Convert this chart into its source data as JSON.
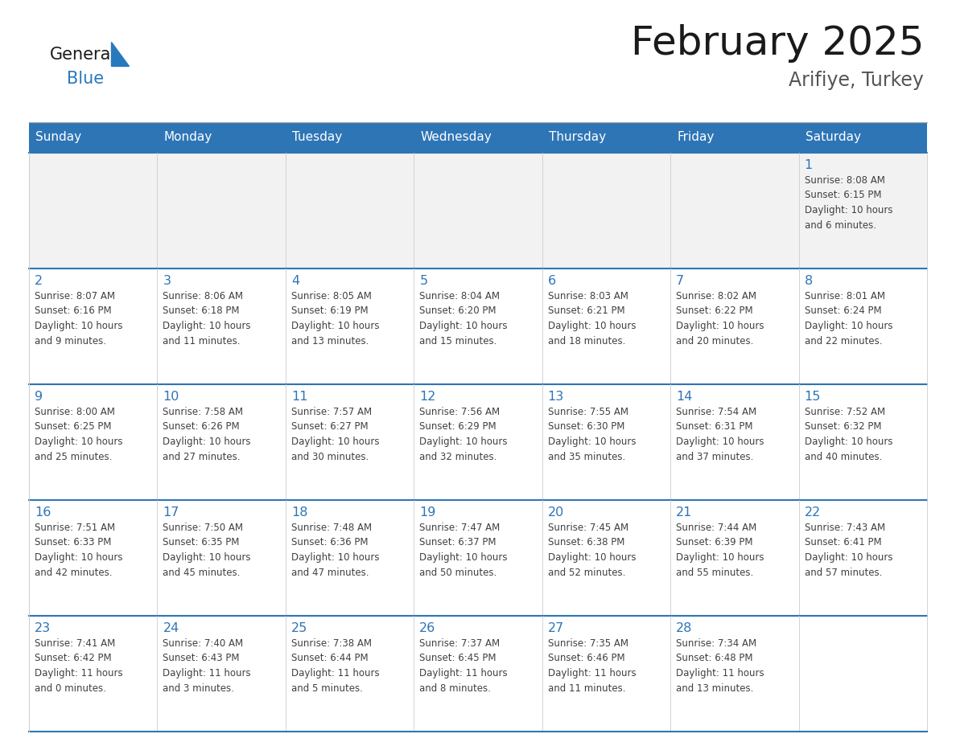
{
  "title": "February 2025",
  "subtitle": "Arifiye, Turkey",
  "header_bg_color": "#2E75B6",
  "header_text_color": "#FFFFFF",
  "days_of_week": [
    "Sunday",
    "Monday",
    "Tuesday",
    "Wednesday",
    "Thursday",
    "Friday",
    "Saturday"
  ],
  "cell_bg_color": "#FFFFFF",
  "alt_cell_bg_color": "#F2F2F2",
  "day_num_color": "#2E75B6",
  "info_text_color": "#404040",
  "title_color": "#1A1A1A",
  "subtitle_color": "#555555",
  "logo_general_color": "#1A1A1A",
  "logo_blue_color": "#2878BE",
  "border_color_top": "#2E75B6",
  "border_color_cell": "#CCCCCC",
  "weeks": [
    [
      {
        "day": null,
        "info": null
      },
      {
        "day": null,
        "info": null
      },
      {
        "day": null,
        "info": null
      },
      {
        "day": null,
        "info": null
      },
      {
        "day": null,
        "info": null
      },
      {
        "day": null,
        "info": null
      },
      {
        "day": 1,
        "info": "Sunrise: 8:08 AM\nSunset: 6:15 PM\nDaylight: 10 hours\nand 6 minutes."
      }
    ],
    [
      {
        "day": 2,
        "info": "Sunrise: 8:07 AM\nSunset: 6:16 PM\nDaylight: 10 hours\nand 9 minutes."
      },
      {
        "day": 3,
        "info": "Sunrise: 8:06 AM\nSunset: 6:18 PM\nDaylight: 10 hours\nand 11 minutes."
      },
      {
        "day": 4,
        "info": "Sunrise: 8:05 AM\nSunset: 6:19 PM\nDaylight: 10 hours\nand 13 minutes."
      },
      {
        "day": 5,
        "info": "Sunrise: 8:04 AM\nSunset: 6:20 PM\nDaylight: 10 hours\nand 15 minutes."
      },
      {
        "day": 6,
        "info": "Sunrise: 8:03 AM\nSunset: 6:21 PM\nDaylight: 10 hours\nand 18 minutes."
      },
      {
        "day": 7,
        "info": "Sunrise: 8:02 AM\nSunset: 6:22 PM\nDaylight: 10 hours\nand 20 minutes."
      },
      {
        "day": 8,
        "info": "Sunrise: 8:01 AM\nSunset: 6:24 PM\nDaylight: 10 hours\nand 22 minutes."
      }
    ],
    [
      {
        "day": 9,
        "info": "Sunrise: 8:00 AM\nSunset: 6:25 PM\nDaylight: 10 hours\nand 25 minutes."
      },
      {
        "day": 10,
        "info": "Sunrise: 7:58 AM\nSunset: 6:26 PM\nDaylight: 10 hours\nand 27 minutes."
      },
      {
        "day": 11,
        "info": "Sunrise: 7:57 AM\nSunset: 6:27 PM\nDaylight: 10 hours\nand 30 minutes."
      },
      {
        "day": 12,
        "info": "Sunrise: 7:56 AM\nSunset: 6:29 PM\nDaylight: 10 hours\nand 32 minutes."
      },
      {
        "day": 13,
        "info": "Sunrise: 7:55 AM\nSunset: 6:30 PM\nDaylight: 10 hours\nand 35 minutes."
      },
      {
        "day": 14,
        "info": "Sunrise: 7:54 AM\nSunset: 6:31 PM\nDaylight: 10 hours\nand 37 minutes."
      },
      {
        "day": 15,
        "info": "Sunrise: 7:52 AM\nSunset: 6:32 PM\nDaylight: 10 hours\nand 40 minutes."
      }
    ],
    [
      {
        "day": 16,
        "info": "Sunrise: 7:51 AM\nSunset: 6:33 PM\nDaylight: 10 hours\nand 42 minutes."
      },
      {
        "day": 17,
        "info": "Sunrise: 7:50 AM\nSunset: 6:35 PM\nDaylight: 10 hours\nand 45 minutes."
      },
      {
        "day": 18,
        "info": "Sunrise: 7:48 AM\nSunset: 6:36 PM\nDaylight: 10 hours\nand 47 minutes."
      },
      {
        "day": 19,
        "info": "Sunrise: 7:47 AM\nSunset: 6:37 PM\nDaylight: 10 hours\nand 50 minutes."
      },
      {
        "day": 20,
        "info": "Sunrise: 7:45 AM\nSunset: 6:38 PM\nDaylight: 10 hours\nand 52 minutes."
      },
      {
        "day": 21,
        "info": "Sunrise: 7:44 AM\nSunset: 6:39 PM\nDaylight: 10 hours\nand 55 minutes."
      },
      {
        "day": 22,
        "info": "Sunrise: 7:43 AM\nSunset: 6:41 PM\nDaylight: 10 hours\nand 57 minutes."
      }
    ],
    [
      {
        "day": 23,
        "info": "Sunrise: 7:41 AM\nSunset: 6:42 PM\nDaylight: 11 hours\nand 0 minutes."
      },
      {
        "day": 24,
        "info": "Sunrise: 7:40 AM\nSunset: 6:43 PM\nDaylight: 11 hours\nand 3 minutes."
      },
      {
        "day": 25,
        "info": "Sunrise: 7:38 AM\nSunset: 6:44 PM\nDaylight: 11 hours\nand 5 minutes."
      },
      {
        "day": 26,
        "info": "Sunrise: 7:37 AM\nSunset: 6:45 PM\nDaylight: 11 hours\nand 8 minutes."
      },
      {
        "day": 27,
        "info": "Sunrise: 7:35 AM\nSunset: 6:46 PM\nDaylight: 11 hours\nand 11 minutes."
      },
      {
        "day": 28,
        "info": "Sunrise: 7:34 AM\nSunset: 6:48 PM\nDaylight: 11 hours\nand 13 minutes."
      },
      {
        "day": null,
        "info": null
      }
    ]
  ]
}
